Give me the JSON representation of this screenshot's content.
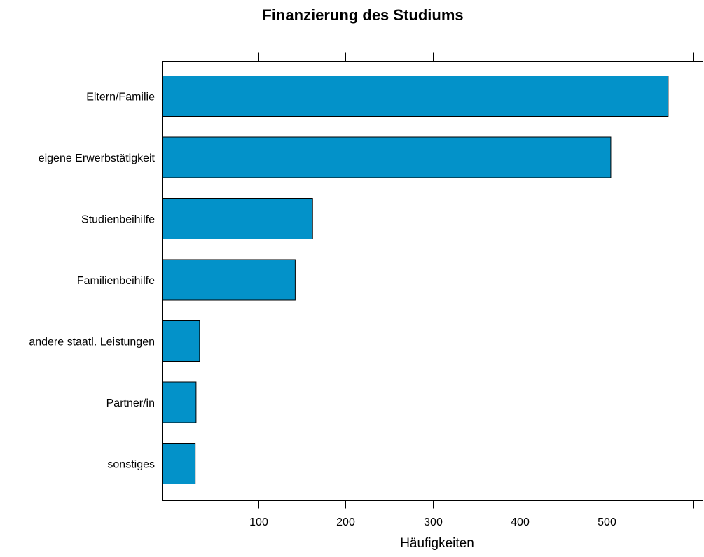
{
  "chart_data": {
    "type": "bar",
    "orientation": "horizontal",
    "title": "Finanzierung des Studiums",
    "xlabel": "Häufigkeiten",
    "ylabel": "",
    "categories": [
      "Eltern/Familie",
      "eigene Erwerbstätigkeit",
      "Studienbeihilfe",
      "Familienbeihilfe",
      "andere staatl. Leistungen",
      "Partner/in",
      "sonstiges"
    ],
    "values": [
      571,
      505,
      162,
      142,
      32,
      28,
      27
    ],
    "xlim": [
      -11,
      611
    ],
    "xticks": [
      0,
      100,
      200,
      300,
      400,
      500,
      600
    ],
    "xtick_labels": [
      "",
      "100",
      "200",
      "300",
      "400",
      "500",
      ""
    ],
    "grid": false,
    "bar_color": "#0392C9",
    "bar_edge_color": "#000000"
  }
}
